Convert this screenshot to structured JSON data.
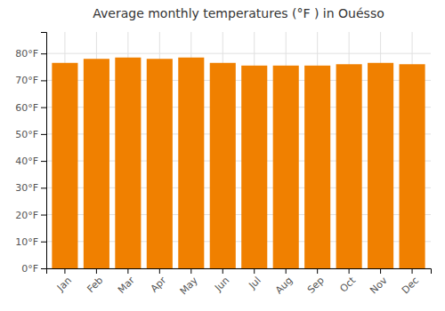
{
  "chart_data": {
    "type": "bar",
    "title": "Average monthly temperatures (°F ) in Ouésso",
    "categories": [
      "Jan",
      "Feb",
      "Mar",
      "Apr",
      "May",
      "Jun",
      "Jul",
      "Aug",
      "Sep",
      "Oct",
      "Nov",
      "Dec"
    ],
    "values": [
      76.5,
      78.0,
      78.5,
      78.0,
      78.5,
      76.5,
      75.5,
      75.5,
      75.5,
      76.0,
      76.5,
      76.0
    ],
    "color": "#F08000",
    "ylim": [
      0,
      88
    ],
    "yticks": [
      {
        "value": 0,
        "label": "0°F"
      },
      {
        "value": 10,
        "label": "10°F"
      },
      {
        "value": 20,
        "label": "20°F"
      },
      {
        "value": 30,
        "label": "30°F"
      },
      {
        "value": 40,
        "label": "40°F"
      },
      {
        "value": 50,
        "label": "50°F"
      },
      {
        "value": 60,
        "label": "60°F"
      },
      {
        "value": 70,
        "label": "70°F"
      },
      {
        "value": 80,
        "label": "80°F"
      }
    ],
    "grid": true
  }
}
